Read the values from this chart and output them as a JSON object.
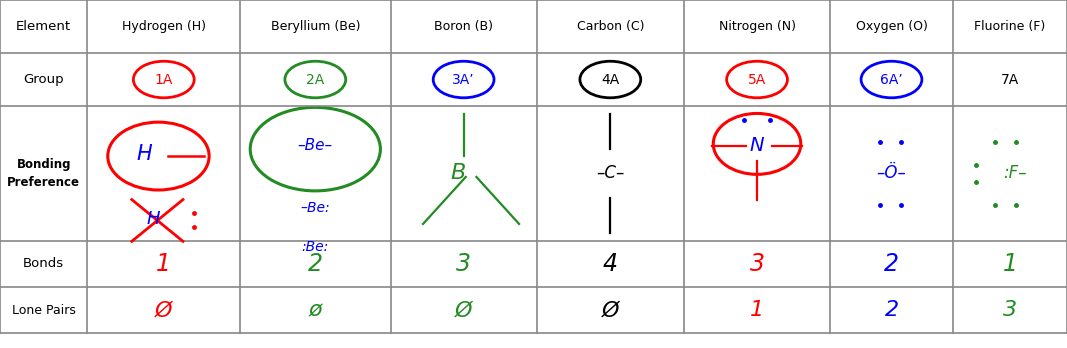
{
  "background_color": "#ffffff",
  "grid_color": "#888888",
  "element_names": [
    "Hydrogen (H)",
    "Beryllium (Be)",
    "Boron (B)",
    "Carbon (C)",
    "Nitrogen (N)",
    "Oxygen (O)",
    "Fluorine (F)"
  ],
  "groups": [
    "1A",
    "2A",
    "3A’",
    "4A",
    "5A",
    "6A’",
    "7A"
  ],
  "group_colors": [
    "red",
    "#228B22",
    "blue",
    "black",
    "red",
    "blue",
    "black"
  ],
  "group_circle_colors": [
    "red",
    "#228B22",
    "blue",
    "black",
    "red",
    "blue",
    "none"
  ],
  "bonds": [
    "1",
    "2",
    "3",
    "4",
    "3",
    "2",
    "1"
  ],
  "bonds_colors": [
    "red",
    "#228B22",
    "#228B22",
    "black",
    "red",
    "blue",
    "#228B22"
  ],
  "lone_pairs": [
    "Ø",
    "ø",
    "Ø",
    "Ø",
    "1",
    "2",
    "3"
  ],
  "lone_pairs_colors": [
    "red",
    "#228B22",
    "#228B22",
    "black",
    "red",
    "blue",
    "#228B22"
  ],
  "figsize": [
    10.67,
    3.48
  ],
  "dpi": 100
}
